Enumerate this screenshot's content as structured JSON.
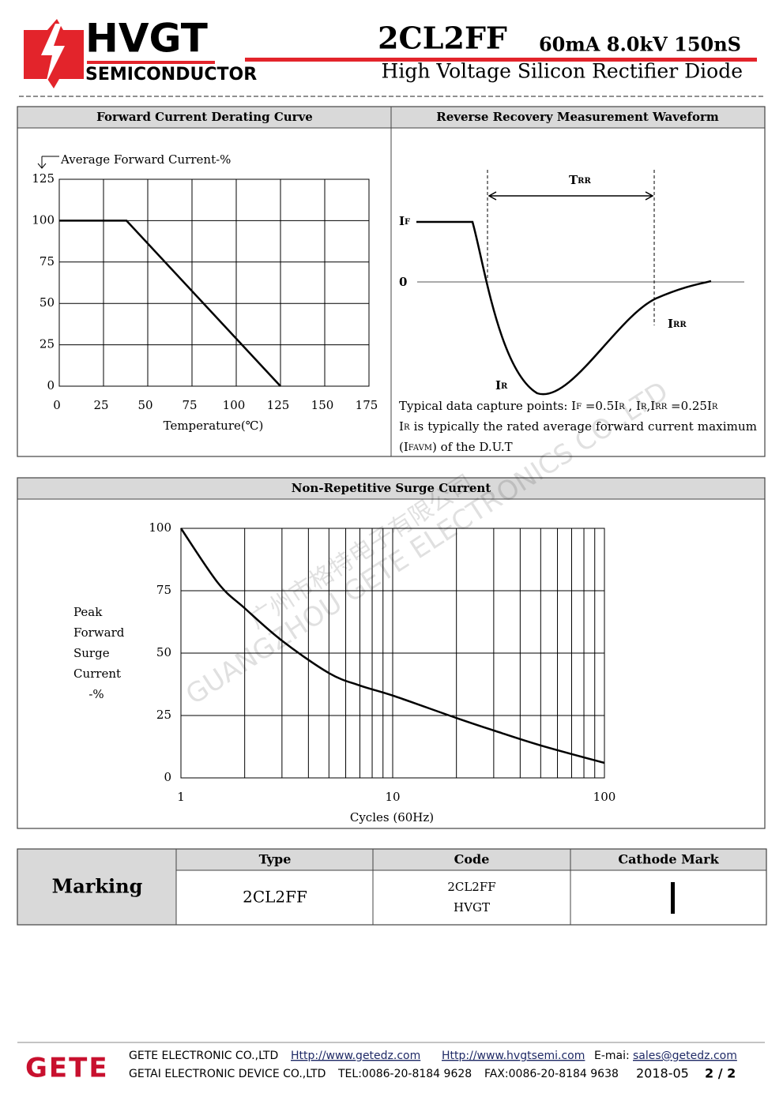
{
  "header": {
    "brand": "HVGT",
    "brand_sub": "SEMICONDUCTOR",
    "part_number": "2CL2FF",
    "ratings": "60mA 8.0kV 150nS",
    "description": "High Voltage Silicon Rectifier Diode"
  },
  "panels": {
    "derating_title": "Forward Current Derating Curve",
    "waveform_title": "Reverse Recovery Measurement Waveform",
    "surge_title": "Non-Repetitive Surge Current"
  },
  "chart_data": [
    {
      "type": "line",
      "y_label": "Average Forward Current-%",
      "x_label": "Temperature(℃)",
      "x": [
        0,
        38,
        125
      ],
      "values": [
        100,
        100,
        0
      ],
      "xlim": [
        0,
        175
      ],
      "xticks": [
        0,
        25,
        50,
        75,
        100,
        125,
        150,
        175
      ],
      "ylim": [
        0,
        125
      ],
      "yticks": [
        0,
        25,
        50,
        75,
        100,
        125
      ],
      "grid": true,
      "color": "#000000"
    },
    {
      "type": "line",
      "x_scale": "log",
      "y_label": [
        "Peak",
        "Forward",
        "Surge",
        "Current",
        "-%"
      ],
      "x_label": "Cycles (60Hz)",
      "x": [
        1,
        1.5,
        2,
        3,
        5,
        7,
        10,
        20,
        30,
        50,
        100
      ],
      "values": [
        100,
        78,
        68,
        55,
        42,
        37,
        33,
        24,
        19,
        13,
        6
      ],
      "xlim": [
        1,
        100
      ],
      "xticks": [
        1,
        10,
        100
      ],
      "xgrid": [
        2,
        3,
        4,
        5,
        6,
        7,
        8,
        9,
        20,
        30,
        40,
        50,
        60,
        70,
        80,
        90
      ],
      "ylim": [
        0,
        100
      ],
      "yticks": [
        0,
        25,
        50,
        75,
        100
      ],
      "grid": true,
      "color": "#000000"
    }
  ],
  "waveform": {
    "trr": [
      "T",
      "RR"
    ],
    "if": [
      "I",
      "F"
    ],
    "zero": "0",
    "irr": [
      "I",
      "RR"
    ],
    "ir": [
      "I",
      "R"
    ],
    "caption_1": [
      "Typical data capture points: I",
      "F",
      " =0.5I",
      "R",
      " , I",
      "R",
      ",I",
      "RR",
      " =0.25I",
      "R"
    ],
    "caption_2": [
      "I",
      "R",
      " is typically the rated average forward current maximum"
    ],
    "caption_3": [
      "(I",
      "FAVM",
      ") of the D.U.T"
    ]
  },
  "watermark": {
    "chinese": "广州市格特电子有限公司",
    "english": "GUANGZHOU GETE ELECTRONICS CO.,LTD"
  },
  "marking": {
    "title": "Marking",
    "headers": [
      "Type",
      "Code",
      "Cathode Mark"
    ],
    "type": "2CL2FF",
    "code": [
      "2CL2FF",
      "HVGT"
    ]
  },
  "footer": {
    "logo": "GETE",
    "company_1": "GETE ELECTRONIC CO.,LTD",
    "company_2": "GETAI ELECTRONIC DEVICE CO.,LTD",
    "url_1": "Http://www.getedz.com",
    "url_2": "Http://www.hvgtsemi.com",
    "email_label": "E-mai:",
    "email": "sales@getedz.com",
    "tel": "TEL:0086-20-8184 9628",
    "fax": "FAX:0086-20-8184 9638",
    "date": "2018-05",
    "page": "2 / 2"
  }
}
